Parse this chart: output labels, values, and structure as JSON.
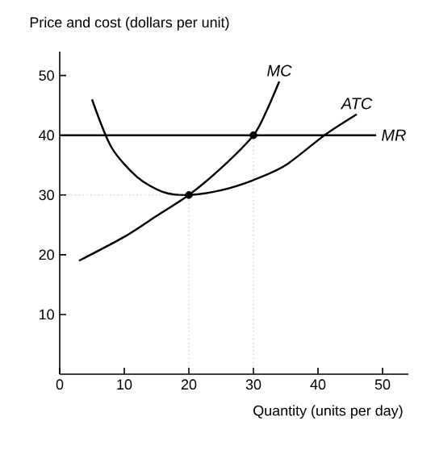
{
  "chart_data": {
    "type": "line",
    "ylabel": "Price and cost (dollars per unit)",
    "xlabel": "Quantity (units per day)",
    "xlim": [
      0,
      54
    ],
    "ylim": [
      0,
      54
    ],
    "xticks": [
      0,
      10,
      20,
      30,
      40,
      50
    ],
    "yticks": [
      10,
      20,
      30,
      40,
      50
    ],
    "grid": false,
    "marker": "none",
    "line_style": "solid",
    "series": [
      {
        "name": "MC",
        "color": "#000000",
        "x": [
          3,
          10,
          15,
          20,
          25,
          30,
          32,
          34
        ],
        "values": [
          19,
          23,
          26.5,
          30,
          34.5,
          40,
          44,
          49
        ]
      },
      {
        "name": "ATC",
        "color": "#000000",
        "x": [
          5,
          8,
          12,
          16,
          20,
          25,
          30,
          35,
          41,
          46
        ],
        "values": [
          46,
          38,
          33,
          30.5,
          30,
          30.8,
          32.5,
          35,
          40,
          43.5
        ]
      },
      {
        "name": "MR",
        "color": "#000000",
        "x": [
          0,
          49
        ],
        "values": [
          40,
          40
        ]
      },
      {
        "type": "scatter",
        "marker": "circle",
        "color": "#000000",
        "x": [
          20,
          30
        ],
        "values": [
          30,
          40
        ]
      }
    ],
    "ref_lines": [
      {
        "axis": "x",
        "value": 20,
        "line_style": "dotted"
      },
      {
        "axis": "x",
        "value": 30,
        "line_style": "dotted"
      },
      {
        "axis": "y",
        "value": 30,
        "line_style": "dotted"
      }
    ]
  }
}
